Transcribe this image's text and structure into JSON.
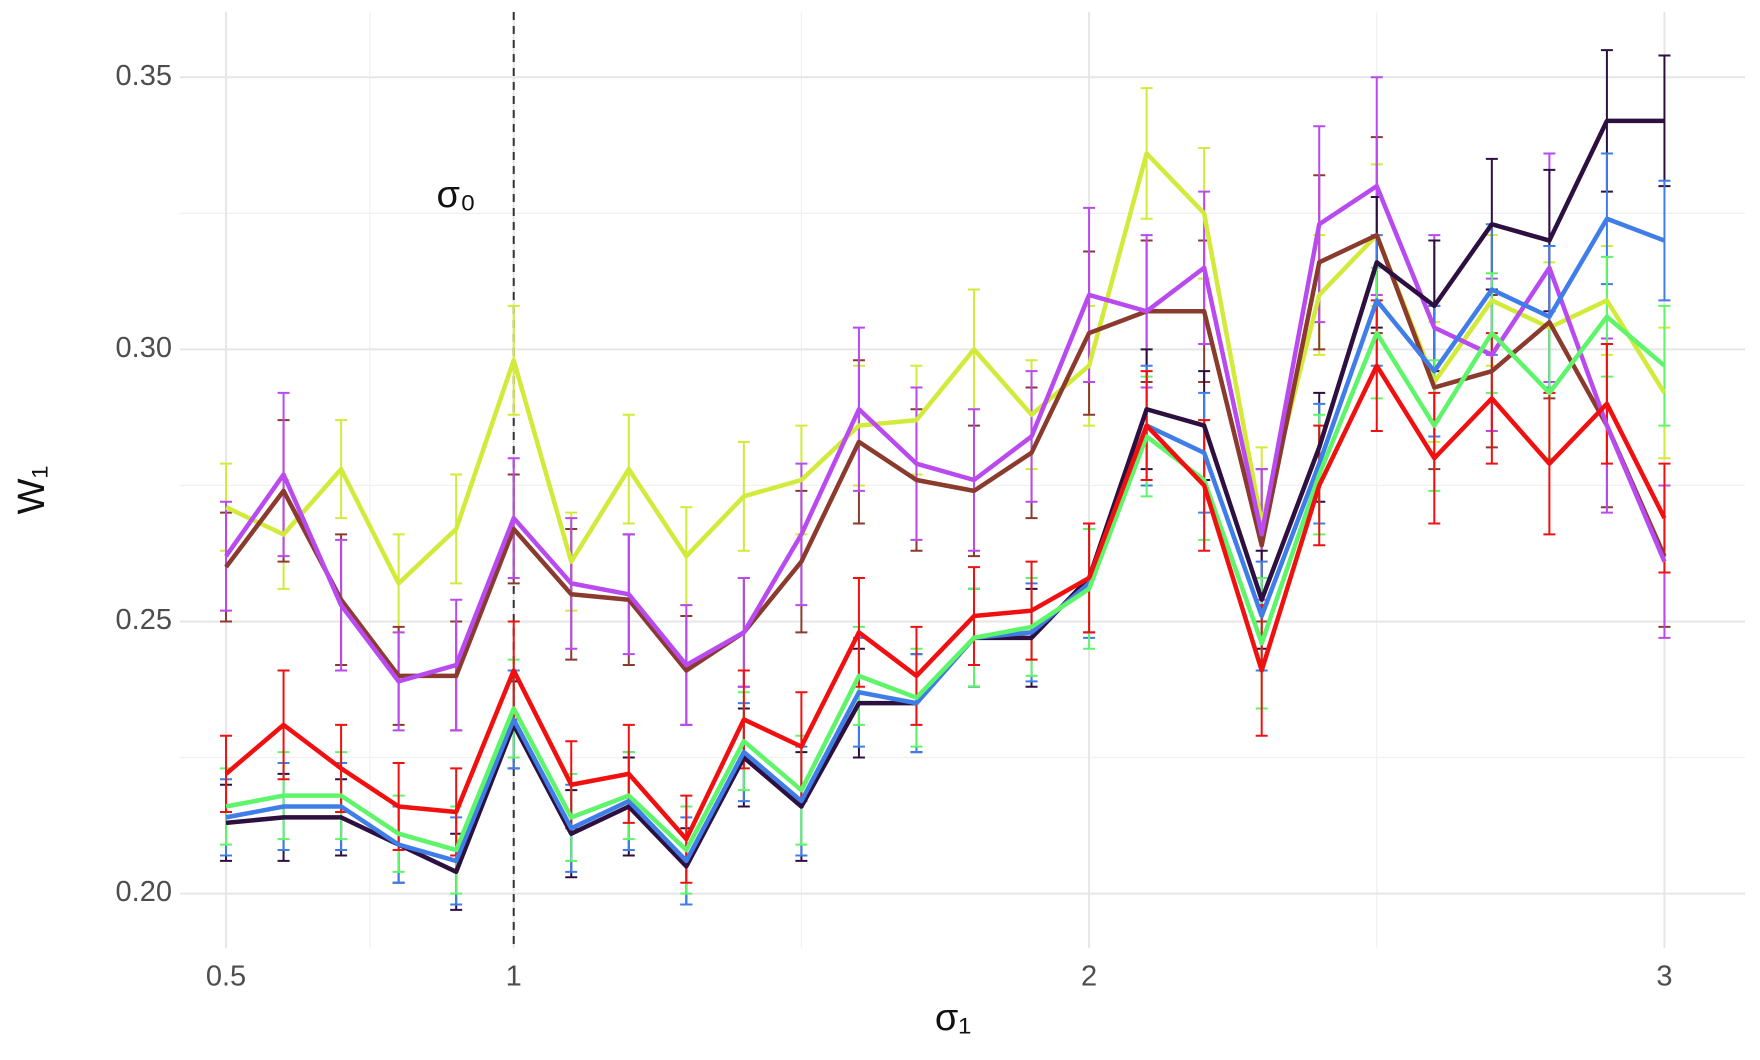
{
  "chart_data": {
    "type": "line",
    "xlabel": "σ₁",
    "ylabel": "W₁",
    "annotations": [
      {
        "text": "σ₀",
        "x": 0.9,
        "y": 0.328
      }
    ],
    "vline": 1,
    "x": [
      0.5,
      0.6,
      0.7,
      0.8,
      0.9,
      1.0,
      1.1,
      1.2,
      1.3,
      1.4,
      1.5,
      1.6,
      1.7,
      1.8,
      1.9,
      2.0,
      2.1,
      2.2,
      2.3,
      2.4,
      2.5,
      2.6,
      2.7,
      2.8,
      2.9,
      3.0
    ],
    "xlim": [
      0.42,
      3.14
    ],
    "xticks": [
      0.5,
      1,
      2,
      3
    ],
    "xminor": [
      0.75,
      1.5,
      2.5
    ],
    "ylim": [
      0.19,
      0.362
    ],
    "yticks": [
      {
        "value": 0.2,
        "label": "0.20"
      },
      {
        "value": 0.25,
        "label": "0.25"
      },
      {
        "value": 0.3,
        "label": "0.30"
      },
      {
        "value": 0.35,
        "label": "0.35"
      }
    ],
    "yminor": [
      0.225,
      0.275,
      0.325
    ],
    "grid": true,
    "series": [
      {
        "color": "#d2ea3a",
        "values": [
          0.271,
          0.266,
          0.278,
          0.257,
          0.267,
          0.298,
          0.261,
          0.278,
          0.262,
          0.273,
          0.276,
          0.286,
          0.287,
          0.3,
          0.288,
          0.297,
          0.336,
          0.325,
          0.268,
          0.31,
          0.321,
          0.294,
          0.309,
          0.304,
          0.309,
          0.292
        ],
        "errors": [
          0.008,
          0.01,
          0.009,
          0.009,
          0.01,
          0.01,
          0.009,
          0.01,
          0.009,
          0.01,
          0.01,
          0.011,
          0.01,
          0.011,
          0.01,
          0.011,
          0.012,
          0.012,
          0.014,
          0.011,
          0.013,
          0.011,
          0.012,
          0.012,
          0.01,
          0.012
        ]
      },
      {
        "color": "#8b3a2e",
        "values": [
          0.26,
          0.274,
          0.254,
          0.24,
          0.24,
          0.267,
          0.255,
          0.254,
          0.241,
          0.248,
          0.261,
          0.283,
          0.276,
          0.274,
          0.281,
          0.303,
          0.307,
          0.307,
          0.264,
          0.316,
          0.321,
          0.293,
          0.296,
          0.305,
          0.286,
          0.262
        ],
        "errors": [
          0.01,
          0.013,
          0.012,
          0.009,
          0.01,
          0.01,
          0.012,
          0.012,
          0.01,
          0.01,
          0.013,
          0.015,
          0.013,
          0.012,
          0.012,
          0.015,
          0.013,
          0.013,
          0.014,
          0.016,
          0.018,
          0.015,
          0.014,
          0.014,
          0.015,
          0.013
        ]
      },
      {
        "color": "#b84af0",
        "values": [
          0.262,
          0.277,
          0.253,
          0.239,
          0.242,
          0.269,
          0.257,
          0.255,
          0.242,
          0.248,
          0.266,
          0.289,
          0.279,
          0.276,
          0.284,
          0.31,
          0.307,
          0.315,
          0.266,
          0.323,
          0.33,
          0.304,
          0.299,
          0.315,
          0.286,
          0.261
        ],
        "errors": [
          0.01,
          0.015,
          0.012,
          0.009,
          0.012,
          0.011,
          0.012,
          0.011,
          0.011,
          0.01,
          0.013,
          0.015,
          0.014,
          0.013,
          0.012,
          0.016,
          0.014,
          0.014,
          0.012,
          0.018,
          0.02,
          0.017,
          0.014,
          0.021,
          0.016,
          0.014
        ]
      },
      {
        "color": "#2d1040",
        "values": [
          0.213,
          0.214,
          0.214,
          0.209,
          0.204,
          0.231,
          0.211,
          0.216,
          0.205,
          0.225,
          0.216,
          0.235,
          0.235,
          0.247,
          0.247,
          0.258,
          0.289,
          0.286,
          0.254,
          0.282,
          0.316,
          0.308,
          0.323,
          0.32,
          0.342,
          0.342
        ],
        "errors": [
          0.007,
          0.008,
          0.007,
          0.007,
          0.007,
          0.008,
          0.008,
          0.009,
          0.007,
          0.009,
          0.01,
          0.01,
          0.009,
          0.009,
          0.009,
          0.01,
          0.011,
          0.01,
          0.009,
          0.01,
          0.012,
          0.012,
          0.012,
          0.013,
          0.013,
          0.012
        ]
      },
      {
        "color": "#3f7de8",
        "values": [
          0.214,
          0.216,
          0.216,
          0.209,
          0.206,
          0.232,
          0.212,
          0.217,
          0.206,
          0.226,
          0.217,
          0.237,
          0.235,
          0.247,
          0.248,
          0.257,
          0.286,
          0.281,
          0.251,
          0.279,
          0.309,
          0.296,
          0.311,
          0.306,
          0.324,
          0.32
        ],
        "errors": [
          0.007,
          0.008,
          0.008,
          0.007,
          0.008,
          0.009,
          0.008,
          0.009,
          0.008,
          0.009,
          0.01,
          0.01,
          0.009,
          0.009,
          0.009,
          0.01,
          0.011,
          0.011,
          0.01,
          0.011,
          0.012,
          0.012,
          0.012,
          0.013,
          0.012,
          0.011
        ]
      },
      {
        "color": "#5ef56a",
        "values": [
          0.216,
          0.218,
          0.218,
          0.211,
          0.208,
          0.234,
          0.214,
          0.218,
          0.208,
          0.228,
          0.219,
          0.24,
          0.236,
          0.247,
          0.249,
          0.256,
          0.284,
          0.276,
          0.246,
          0.277,
          0.303,
          0.286,
          0.303,
          0.292,
          0.306,
          0.297
        ],
        "errors": [
          0.007,
          0.008,
          0.008,
          0.007,
          0.008,
          0.009,
          0.008,
          0.008,
          0.008,
          0.009,
          0.01,
          0.009,
          0.009,
          0.009,
          0.009,
          0.011,
          0.011,
          0.011,
          0.012,
          0.011,
          0.012,
          0.012,
          0.011,
          0.012,
          0.011,
          0.011
        ]
      },
      {
        "color": "#f01010",
        "values": [
          0.222,
          0.231,
          0.223,
          0.216,
          0.215,
          0.241,
          0.22,
          0.222,
          0.21,
          0.232,
          0.227,
          0.248,
          0.24,
          0.251,
          0.252,
          0.258,
          0.286,
          0.275,
          0.241,
          0.275,
          0.297,
          0.28,
          0.291,
          0.279,
          0.29,
          0.269
        ],
        "errors": [
          0.007,
          0.01,
          0.008,
          0.008,
          0.008,
          0.009,
          0.008,
          0.009,
          0.008,
          0.009,
          0.01,
          0.01,
          0.009,
          0.009,
          0.009,
          0.01,
          0.01,
          0.012,
          0.012,
          0.011,
          0.012,
          0.012,
          0.012,
          0.013,
          0.011,
          0.01
        ]
      }
    ]
  }
}
